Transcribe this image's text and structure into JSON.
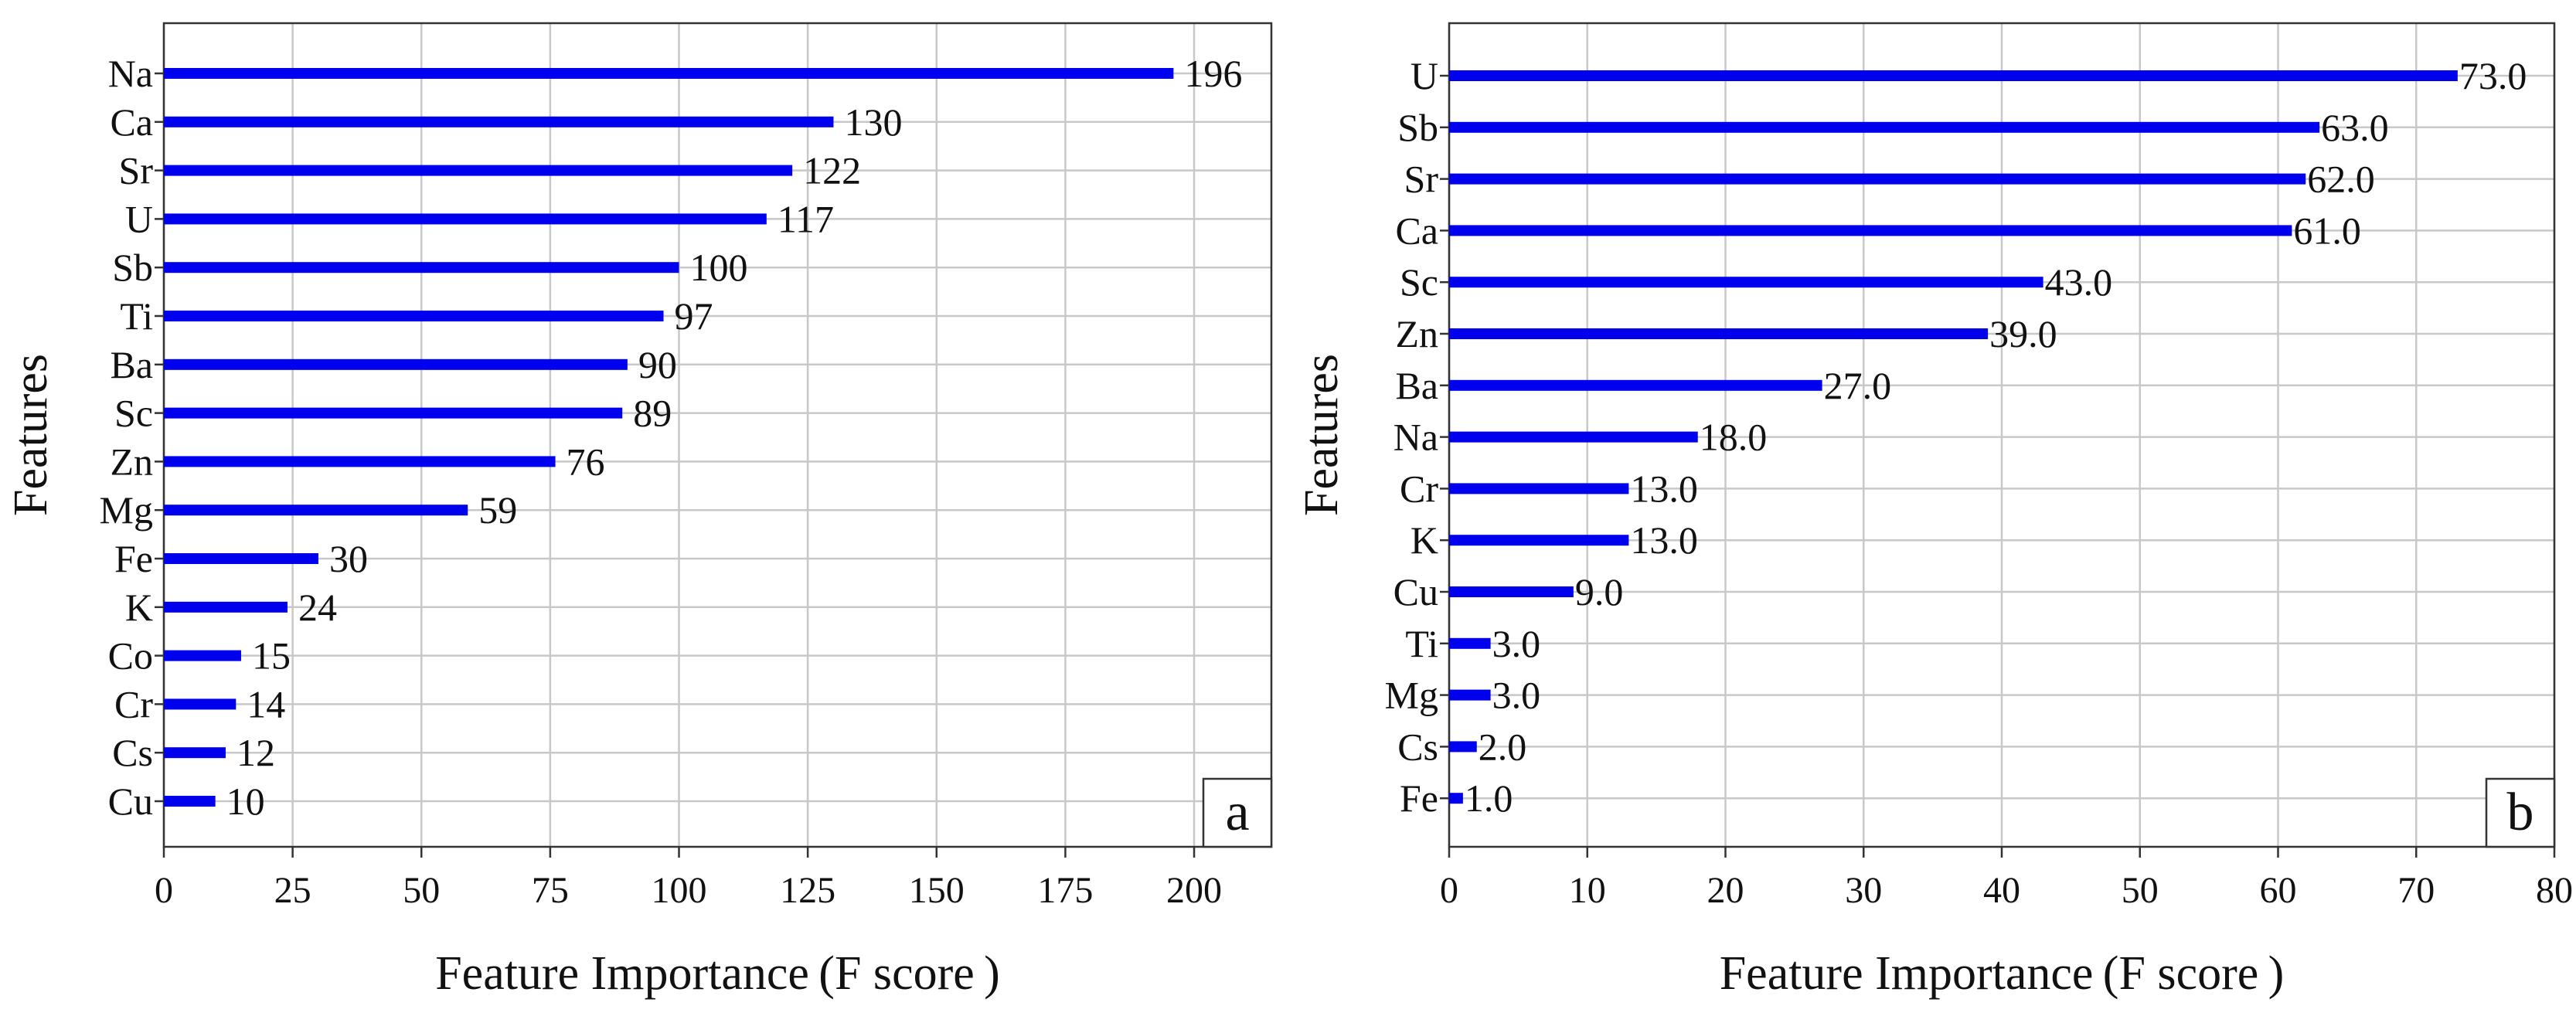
{
  "chart_data": [
    {
      "type": "bar",
      "orientation": "horizontal",
      "xlabel": "Feature Importance (F score )",
      "ylabel": "Features",
      "xlim": [
        0,
        215
      ],
      "xticks": [
        0,
        25,
        50,
        75,
        100,
        125,
        150,
        175,
        200
      ],
      "xtick_labels": [
        "0",
        "25",
        "50",
        "75",
        "100",
        "125",
        "150",
        "175",
        "200"
      ],
      "grid": true,
      "panel_label": "a",
      "bar_color": "#0000ee",
      "categories": [
        "Na",
        "Ca",
        "Sr",
        "U",
        "Sb",
        "Ti",
        "Ba",
        "Sc",
        "Zn",
        "Mg",
        "Fe",
        "K",
        "Co",
        "Cr",
        "Cs",
        "Cu"
      ],
      "values": [
        196,
        130,
        122,
        117,
        100,
        97,
        90,
        89,
        76,
        59,
        30,
        24,
        15,
        14,
        12,
        10
      ],
      "value_labels": [
        "196",
        "130",
        "122",
        "117",
        "100",
        "97",
        "90",
        "89",
        "76",
        "59",
        "30",
        "24",
        "15",
        "14",
        "12",
        "10"
      ]
    },
    {
      "type": "bar",
      "orientation": "horizontal",
      "xlabel": "Feature Importance (F score )",
      "ylabel": "Features",
      "xlim": [
        0,
        80
      ],
      "xticks": [
        0,
        10,
        20,
        30,
        40,
        50,
        60,
        70,
        80
      ],
      "xtick_labels": [
        "0",
        "10",
        "20",
        "30",
        "40",
        "50",
        "60",
        "70",
        "80"
      ],
      "grid": true,
      "panel_label": "b",
      "bar_color": "#0000ee",
      "categories": [
        "U",
        "Sb",
        "Sr",
        "Ca",
        "Sc",
        "Zn",
        "Ba",
        "Na",
        "Cr",
        "K",
        "Cu",
        "Ti",
        "Mg",
        "Cs",
        "Fe"
      ],
      "values": [
        73.0,
        63.0,
        62.0,
        61.0,
        43.0,
        39.0,
        27.0,
        18.0,
        13.0,
        13.0,
        9.0,
        3.0,
        3.0,
        2.0,
        1.0
      ],
      "value_labels": [
        "73.0",
        "63.0",
        "62.0",
        "61.0",
        "43.0",
        "39.0",
        "27.0",
        "18.0",
        "13.0",
        "13.0",
        "9.0",
        "3.0",
        "3.0",
        "2.0",
        "1.0"
      ]
    }
  ]
}
